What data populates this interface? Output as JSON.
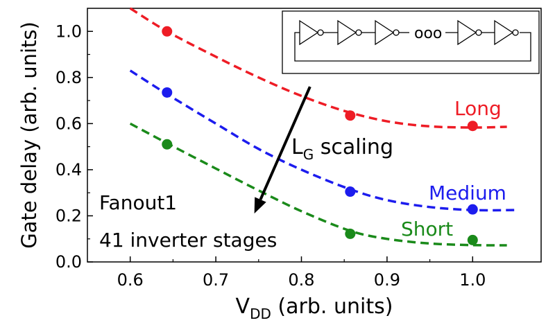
{
  "chart_data": {
    "type": "line",
    "xlabel_main": "V",
    "xlabel_sub": "DD",
    "xlabel_rest": " (arb. units)",
    "ylabel": "Gate delay (arb. units)",
    "xlim": [
      0.55,
      1.08
    ],
    "ylim": [
      0.0,
      1.1
    ],
    "xticks": [
      0.6,
      0.7,
      0.8,
      0.9,
      1.0
    ],
    "yticks": [
      0.0,
      0.2,
      0.4,
      0.6,
      0.8,
      1.0
    ],
    "xtick_labels": [
      "0.6",
      "0.7",
      "0.8",
      "0.9",
      "1.0"
    ],
    "ytick_labels": [
      "0.0",
      "0.2",
      "0.4",
      "0.6",
      "0.8",
      "1.0"
    ],
    "series": [
      {
        "name": "Long",
        "color": "#ee1c25",
        "points": [
          {
            "x": 0.643,
            "y": 1.0
          },
          {
            "x": 0.857,
            "y": 0.635
          },
          {
            "x": 1.0,
            "y": 0.59
          }
        ],
        "fit": [
          [
            0.6,
            1.1
          ],
          [
            0.643,
            1.0
          ],
          [
            0.7,
            0.89
          ],
          [
            0.75,
            0.8
          ],
          [
            0.8,
            0.72
          ],
          [
            0.85,
            0.655
          ],
          [
            0.9,
            0.61
          ],
          [
            0.95,
            0.588
          ],
          [
            1.0,
            0.583
          ],
          [
            1.04,
            0.586
          ]
        ]
      },
      {
        "name": "Medium",
        "color": "#1c1cee",
        "points": [
          {
            "x": 0.643,
            "y": 0.735
          },
          {
            "x": 0.857,
            "y": 0.305
          },
          {
            "x": 1.0,
            "y": 0.228
          }
        ],
        "fit": [
          [
            0.6,
            0.83
          ],
          [
            0.643,
            0.728
          ],
          [
            0.7,
            0.6
          ],
          [
            0.75,
            0.49
          ],
          [
            0.8,
            0.4
          ],
          [
            0.857,
            0.315
          ],
          [
            0.9,
            0.268
          ],
          [
            0.95,
            0.238
          ],
          [
            1.0,
            0.225
          ],
          [
            1.05,
            0.225
          ]
        ]
      },
      {
        "name": "Short",
        "color": "#1a8a1a",
        "points": [
          {
            "x": 0.643,
            "y": 0.51
          },
          {
            "x": 0.857,
            "y": 0.122
          },
          {
            "x": 1.0,
            "y": 0.095
          }
        ],
        "fit": [
          [
            0.6,
            0.6
          ],
          [
            0.643,
            0.515
          ],
          [
            0.7,
            0.405
          ],
          [
            0.75,
            0.31
          ],
          [
            0.8,
            0.22
          ],
          [
            0.857,
            0.135
          ],
          [
            0.9,
            0.1
          ],
          [
            0.95,
            0.08
          ],
          [
            1.0,
            0.073
          ],
          [
            1.04,
            0.072
          ]
        ]
      }
    ],
    "annotations": {
      "arrow_label_main": "L",
      "arrow_label_sub": "G",
      "arrow_label_rest": " scaling",
      "arrow_from": [
        0.81,
        0.76
      ],
      "arrow_to": [
        0.745,
        0.21
      ],
      "fanout": "Fanout1",
      "stages": "41 inverter stages"
    },
    "inset": {
      "description": "ring oscillator",
      "gap_symbol": "ooo"
    }
  }
}
